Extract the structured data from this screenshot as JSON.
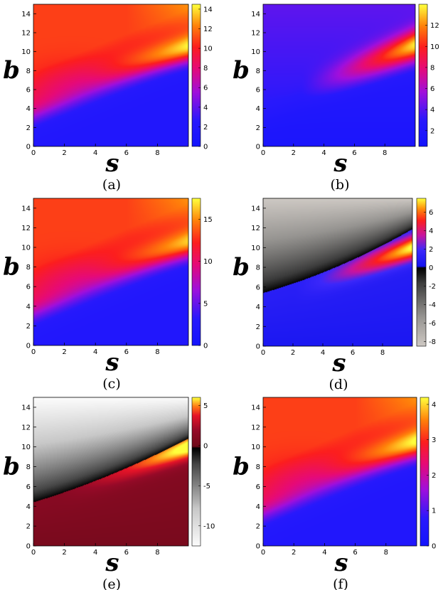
{
  "chart_data": [
    {
      "type": "heatmap",
      "caption": "(a)",
      "xlabel": "s",
      "ylabel": "b",
      "xlim": [
        0,
        10
      ],
      "ylim": [
        0,
        15
      ],
      "xticks": [
        0,
        2,
        4,
        6,
        8
      ],
      "yticks": [
        0,
        2,
        4,
        6,
        8,
        10,
        12,
        14
      ],
      "colorbar": {
        "min": 0,
        "max": 14.5,
        "ticks": [
          0,
          2,
          4,
          6,
          8,
          10,
          12,
          14
        ],
        "colormap": "blue-magenta-red-yellow"
      },
      "features": {
        "boundary": "b = 3.0 + 0.65*s",
        "peak_ridge": "b = 5.5 + 0.42*s"
      }
    },
    {
      "type": "heatmap",
      "caption": "(b)",
      "xlabel": "s",
      "ylabel": "b",
      "xlim": [
        0,
        10
      ],
      "ylim": [
        0,
        15
      ],
      "xticks": [
        0,
        2,
        4,
        6,
        8
      ],
      "yticks": [
        0,
        2,
        4,
        6,
        8,
        10,
        12,
        14
      ],
      "colorbar": {
        "min": 0.5,
        "max": 14,
        "ticks": [
          2,
          4,
          6,
          8,
          10,
          12
        ],
        "colormap": "blue-magenta-red-yellow"
      },
      "features": {
        "boundary": "b = 3.0 + 0.65*s",
        "peak_ridge": "b = 5.5 + 0.42*s"
      }
    },
    {
      "type": "heatmap",
      "caption": "(c)",
      "xlabel": "s",
      "ylabel": "b",
      "xlim": [
        0,
        10
      ],
      "ylim": [
        0,
        15
      ],
      "xticks": [
        0,
        2,
        4,
        6,
        8
      ],
      "yticks": [
        0,
        2,
        4,
        6,
        8,
        10,
        12,
        14
      ],
      "colorbar": {
        "min": 0,
        "max": 17.5,
        "ticks": [
          0,
          5,
          10,
          15
        ],
        "colormap": "blue-magenta-red-yellow"
      },
      "features": {
        "boundary": "b = 3.0 + 0.65*s",
        "peak_ridge": "b = 5.5 + 0.42*s"
      }
    },
    {
      "type": "heatmap",
      "caption": "(d)",
      "xlabel": "s",
      "ylabel": "b",
      "xlim": [
        0,
        10
      ],
      "ylim": [
        0,
        15
      ],
      "xticks": [
        0,
        2,
        4,
        6,
        8
      ],
      "yticks": [
        0,
        2,
        4,
        6,
        8,
        10,
        12,
        14
      ],
      "colorbar": {
        "min": -8.5,
        "max": 7.5,
        "ticks": [
          6,
          4,
          2,
          0,
          -2,
          -4,
          -6,
          -8
        ],
        "colormap": "gray-black-blue-red-yellow"
      },
      "features": {
        "zero_contour": "b = 5.4 + 0.54*s",
        "peak_ridge": "b = 3.0 + 0.55*s"
      }
    },
    {
      "type": "heatmap",
      "caption": "(e)",
      "xlabel": "s",
      "ylabel": "b",
      "xlim": [
        0,
        10
      ],
      "ylim": [
        0,
        15
      ],
      "xticks": [
        0,
        2,
        4,
        6,
        8
      ],
      "yticks": [
        0,
        2,
        4,
        6,
        8,
        10,
        12,
        14
      ],
      "colorbar": {
        "min": -12.5,
        "max": 6,
        "ticks": [
          5,
          0,
          -5,
          -10
        ],
        "colormap": "white-black-maroon-red-yellow"
      },
      "features": {
        "zero_contour": "b = 4.4 + 0.56*s",
        "peak_ridge": "b = 3.0 + 0.55*s"
      }
    },
    {
      "type": "heatmap",
      "caption": "(f)",
      "xlabel": "s",
      "ylabel": "b",
      "xlim": [
        0,
        10
      ],
      "ylim": [
        0,
        15
      ],
      "xticks": [
        0,
        2,
        4,
        6,
        8
      ],
      "yticks": [
        0,
        2,
        4,
        6,
        8,
        10,
        12,
        14
      ],
      "colorbar": {
        "min": 0,
        "max": 4.2,
        "ticks": [
          0,
          1,
          2,
          3,
          4
        ],
        "colormap": "blue-magenta-red-yellow"
      },
      "features": {
        "boundary": "b = 3.0 + 0.65*s",
        "peak_ridge": "b = 5.5 + 0.42*s"
      }
    }
  ]
}
